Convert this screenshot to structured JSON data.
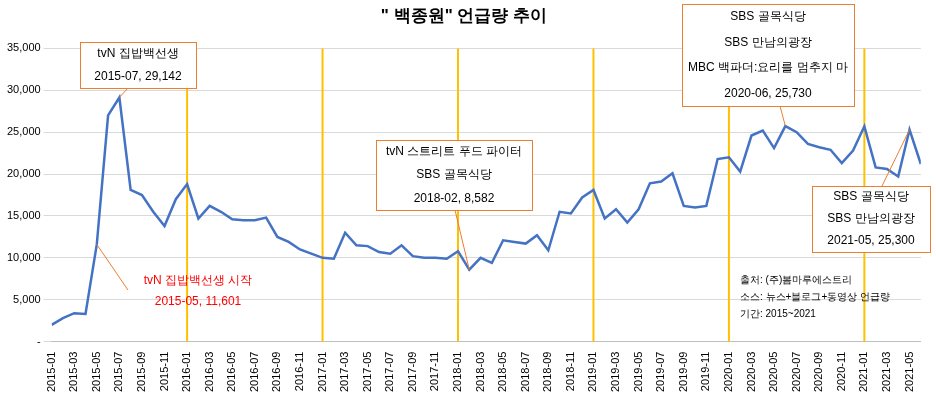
{
  "chart_data": {
    "type": "line",
    "title": "\" 백종원\" 언급량 추이",
    "categories": [
      "2015-01",
      null,
      "2015-03",
      null,
      "2015-05",
      null,
      "2015-07",
      null,
      "2015-09",
      null,
      "2015-11",
      null,
      "2016-01",
      null,
      "2016-03",
      null,
      "2016-05",
      null,
      "2016-07",
      null,
      "2016-09",
      null,
      "2016-11",
      null,
      "2017-01",
      null,
      "2017-03",
      null,
      "2017-05",
      null,
      "2017-07",
      null,
      "2017-09",
      null,
      "2017-11",
      null,
      "2018-01",
      null,
      "2018-03",
      null,
      "2018-05",
      null,
      "2018-07",
      null,
      "2018-09",
      null,
      "2018-11",
      null,
      "2019-01",
      null,
      "2019-03",
      null,
      "2019-05",
      null,
      "2019-07",
      null,
      "2019-09",
      null,
      "2019-11",
      null,
      "2020-01",
      null,
      "2020-03",
      null,
      "2020-05",
      null,
      "2020-07",
      null,
      "2020-09",
      null,
      "2020-11",
      null,
      "2021-01",
      null,
      "2021-03",
      null,
      "2021-05",
      null
    ],
    "values": [
      2000,
      2800,
      3400,
      3300,
      11601,
      27000,
      29142,
      18100,
      17500,
      15500,
      13800,
      17000,
      18800,
      14700,
      16200,
      15500,
      14600,
      14500,
      14500,
      14800,
      12500,
      11900,
      11000,
      10500,
      10000,
      9900,
      13000,
      11500,
      11400,
      10700,
      10500,
      11500,
      10200,
      10000,
      10000,
      9900,
      10800,
      8582,
      10000,
      9400,
      12100,
      11900,
      11700,
      12700,
      10900,
      15500,
      15300,
      17200,
      18100,
      14700,
      15800,
      14200,
      15800,
      18900,
      19100,
      20100,
      16200,
      16000,
      16200,
      21800,
      22000,
      20300,
      24600,
      25200,
      23100,
      25730,
      25000,
      23600,
      23200,
      22900,
      21300,
      22800,
      25700,
      20800,
      20600,
      19700,
      25300,
      21200
    ],
    "color": "#4472c4",
    "ylim": [
      0,
      35000
    ],
    "yticks": [
      {
        "value": 0,
        "label": "-"
      },
      {
        "value": 5000,
        "label": "5,000"
      },
      {
        "value": 10000,
        "label": "10,000"
      },
      {
        "value": 15000,
        "label": "15,000"
      },
      {
        "value": 20000,
        "label": "20,000"
      },
      {
        "value": 25000,
        "label": "25,000"
      },
      {
        "value": 30000,
        "label": "30,000"
      },
      {
        "value": 35000,
        "label": "35,000"
      }
    ],
    "grid": true,
    "reference_lines": [
      "2016-01",
      "2017-01",
      "2018-01",
      "2019-01",
      "2020-01",
      "2021-01"
    ],
    "annotations": [
      {
        "x": "2015-07",
        "value": 29142,
        "lines": [
          "tvN 집밥백선생",
          "2015-07, 29,142"
        ]
      },
      {
        "x": "2015-05",
        "value": 11601,
        "lines": [
          "tvN 집밥백선생 시작",
          "2015-05, 11,601"
        ],
        "color": "#ff0000"
      },
      {
        "x": "2018-02",
        "value": 8582,
        "lines": [
          "tvN 스트리트 푸드 파이터",
          "SBS 골목식당",
          "2018-02, 8,582"
        ]
      },
      {
        "x": "2020-06",
        "value": 25730,
        "lines": [
          "SBS 골목식당",
          "SBS 만남의광장",
          "MBC 백파더:요리를 멈추지 마",
          "2020-06, 25,730"
        ]
      },
      {
        "x": "2021-05",
        "value": 25300,
        "lines": [
          "SBS 골목식당",
          "SBS 만남의광장",
          "2021-05, 25,300"
        ]
      }
    ],
    "source": [
      "출처: (주)봄마루에스트리",
      "소스: 뉴스+블로그+동영상 언급량",
      "기간: 2015~2021"
    ]
  }
}
